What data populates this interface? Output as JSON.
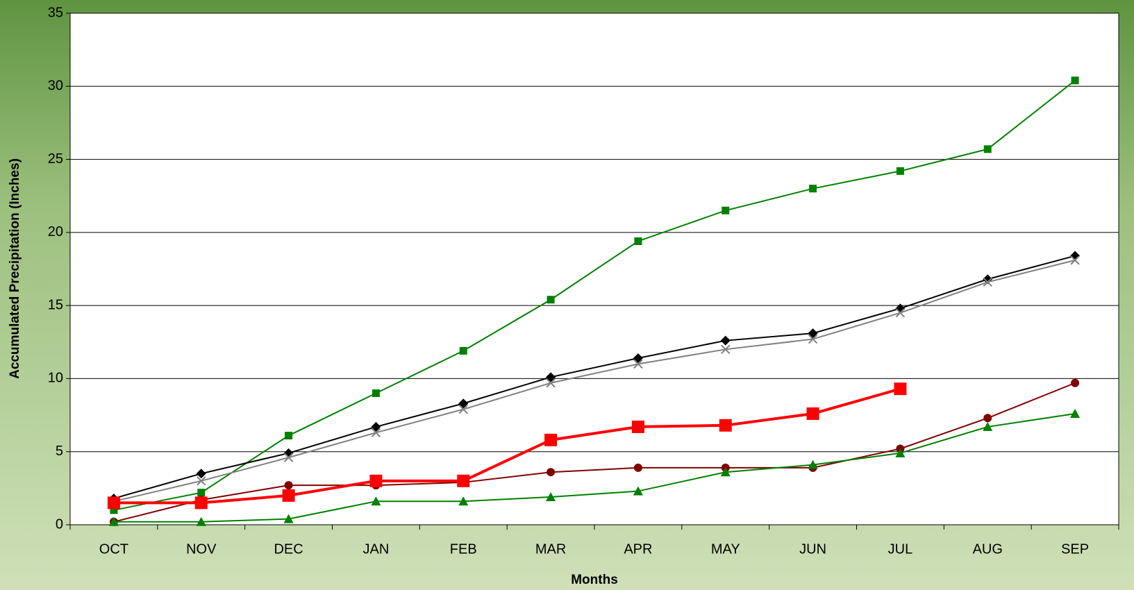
{
  "chart_data": {
    "type": "line",
    "x_label": "Months",
    "y_label": "Accumulated Precipitation (Inches)",
    "categories": [
      "OCT",
      "NOV",
      "DEC",
      "JAN",
      "FEB",
      "MAR",
      "APR",
      "MAY",
      "JUN",
      "JUL",
      "AUG",
      "SEP"
    ],
    "ylim": [
      0,
      35
    ],
    "yticks": [
      0,
      5,
      10,
      15,
      20,
      25,
      30,
      35
    ],
    "grid": true,
    "series": [
      {
        "color": "#008000",
        "marker": "square",
        "width": 2,
        "values": [
          1.0,
          2.2,
          6.1,
          9.0,
          11.9,
          15.4,
          19.4,
          21.5,
          23.0,
          24.2,
          25.7,
          30.4
        ]
      },
      {
        "color": "#000000",
        "marker": "diamond",
        "width": 2,
        "values": [
          1.8,
          3.5,
          4.9,
          6.7,
          8.3,
          10.1,
          11.4,
          12.6,
          13.1,
          14.8,
          16.8,
          18.4
        ]
      },
      {
        "color": "#808080",
        "marker": "x",
        "width": 2,
        "values": [
          1.6,
          3.0,
          4.6,
          6.3,
          7.9,
          9.7,
          11.0,
          12.0,
          12.7,
          14.5,
          16.6,
          18.1
        ]
      },
      {
        "color": "#800000",
        "marker": "circle",
        "width": 2,
        "values": [
          0.2,
          1.7,
          2.7,
          2.7,
          2.9,
          3.6,
          3.9,
          3.9,
          3.9,
          5.2,
          7.3,
          9.7
        ]
      },
      {
        "color": "#008000",
        "marker": "triangle",
        "width": 2,
        "values": [
          0.2,
          0.2,
          0.4,
          1.6,
          1.6,
          1.9,
          2.3,
          3.6,
          4.1,
          4.9,
          6.7,
          7.6
        ]
      },
      {
        "color": "#ff0000",
        "marker": "bigsquare",
        "width": 4,
        "dashed_from": 8,
        "values": [
          1.5,
          1.5,
          2.0,
          3.0,
          3.0,
          5.8,
          6.7,
          6.8,
          7.6,
          9.3,
          null,
          null
        ]
      }
    ]
  }
}
